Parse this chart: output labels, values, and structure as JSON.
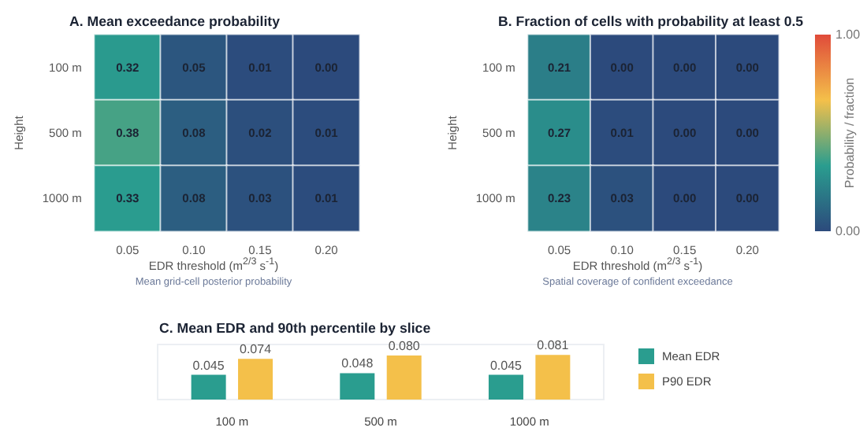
{
  "chart_data": [
    {
      "type": "heatmap",
      "title": "A. Mean exceedance probability",
      "xlabel": "EDR threshold (m$^{2/3}$ s$^{-1}$)",
      "ylabel": "Height",
      "annotations": [
        "Mean grid-cell posterior probability"
      ],
      "categories": [
        "0.05",
        "0.10",
        "0.15",
        "0.20"
      ],
      "y_categories": [
        "100 m",
        "500 m",
        "1000 m"
      ],
      "cells": [
        [
          0.32,
          0.05,
          0.01,
          0
        ],
        [
          0.38,
          0.08,
          0.02,
          0.01
        ],
        [
          0.33,
          0.08,
          0.03,
          0.01
        ]
      ],
      "cell_labels": [
        [
          "0.32",
          "0.05",
          "0.01",
          "0.00"
        ],
        [
          "0.38",
          "0.08",
          "0.02",
          "0.01"
        ],
        [
          "0.33",
          "0.08",
          "0.03",
          "0.01"
        ]
      ]
    },
    {
      "type": "heatmap",
      "title": "B. Fraction of cells with probability at least 0.5",
      "xlabel": "EDR threshold (m$^{2/3}$ s$^{-1}$)",
      "ylabel": "Height",
      "clabel": "Probability / fraction",
      "annotations": [
        "Spatial coverage of confident exceedance"
      ],
      "categories": [
        "0.05",
        "0.10",
        "0.15",
        "0.20"
      ],
      "y_categories": [
        "100 m",
        "500 m",
        "1000 m"
      ],
      "cells": [
        [
          0.21,
          0,
          0,
          0
        ],
        [
          0.27,
          0.01,
          0,
          0
        ],
        [
          0.23,
          0.03,
          0,
          0
        ]
      ],
      "cell_labels": [
        [
          "0.21",
          "0.00",
          "0.00",
          "0.00"
        ],
        [
          "0.27",
          "0.01",
          "0.00",
          "0.00"
        ],
        [
          "0.23",
          "0.03",
          "0.00",
          "0.00"
        ]
      ],
      "clim": [
        0,
        1
      ],
      "cticks": [
        {
          "value": 0,
          "label": "0.00"
        },
        {
          "value": 1,
          "label": "1.00"
        }
      ]
    },
    {
      "type": "bar",
      "title": "C. Mean EDR and 90th percentile by slice",
      "categories": [
        "100 m",
        "500 m",
        "1000 m"
      ],
      "legend": "right",
      "series": [
        {
          "name": "Mean EDR",
          "color": "#2a9d8f",
          "values": [
            0.045,
            0.048,
            0.045
          ],
          "value_labels": [
            "0.045",
            "0.048",
            "0.045"
          ]
        },
        {
          "name": "P90 EDR",
          "color": "#f4c04a",
          "values": [
            0.074,
            0.08,
            0.081
          ],
          "value_labels": [
            "0.074",
            "0.080",
            "0.081"
          ]
        }
      ]
    }
  ]
}
